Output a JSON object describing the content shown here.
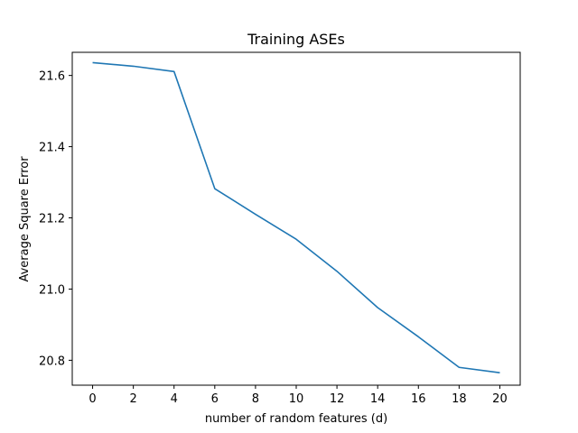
{
  "chart_data": {
    "type": "line",
    "title": "Training ASEs",
    "xlabel": "number of random features (d)",
    "ylabel": "Average Square Error",
    "xlim": [
      -1,
      21
    ],
    "ylim": [
      20.73,
      21.665
    ],
    "xticks": [
      0,
      2,
      4,
      6,
      8,
      10,
      12,
      14,
      16,
      18,
      20
    ],
    "xtick_labels": [
      "0",
      "2",
      "4",
      "6",
      "8",
      "10",
      "12",
      "14",
      "16",
      "18",
      "20"
    ],
    "yticks": [
      20.8,
      21.0,
      21.2,
      21.4,
      21.6
    ],
    "ytick_labels": [
      "20.8",
      "21.0",
      "21.2",
      "21.4",
      "21.6"
    ],
    "grid": false,
    "series": [
      {
        "color": "#1f77b4",
        "x": [
          0,
          2,
          4,
          6,
          8,
          10,
          12,
          14,
          16,
          18,
          20
        ],
        "y": [
          21.636,
          21.626,
          21.611,
          21.282,
          21.21,
          21.14,
          21.05,
          20.948,
          20.866,
          20.78,
          20.765
        ]
      }
    ]
  }
}
